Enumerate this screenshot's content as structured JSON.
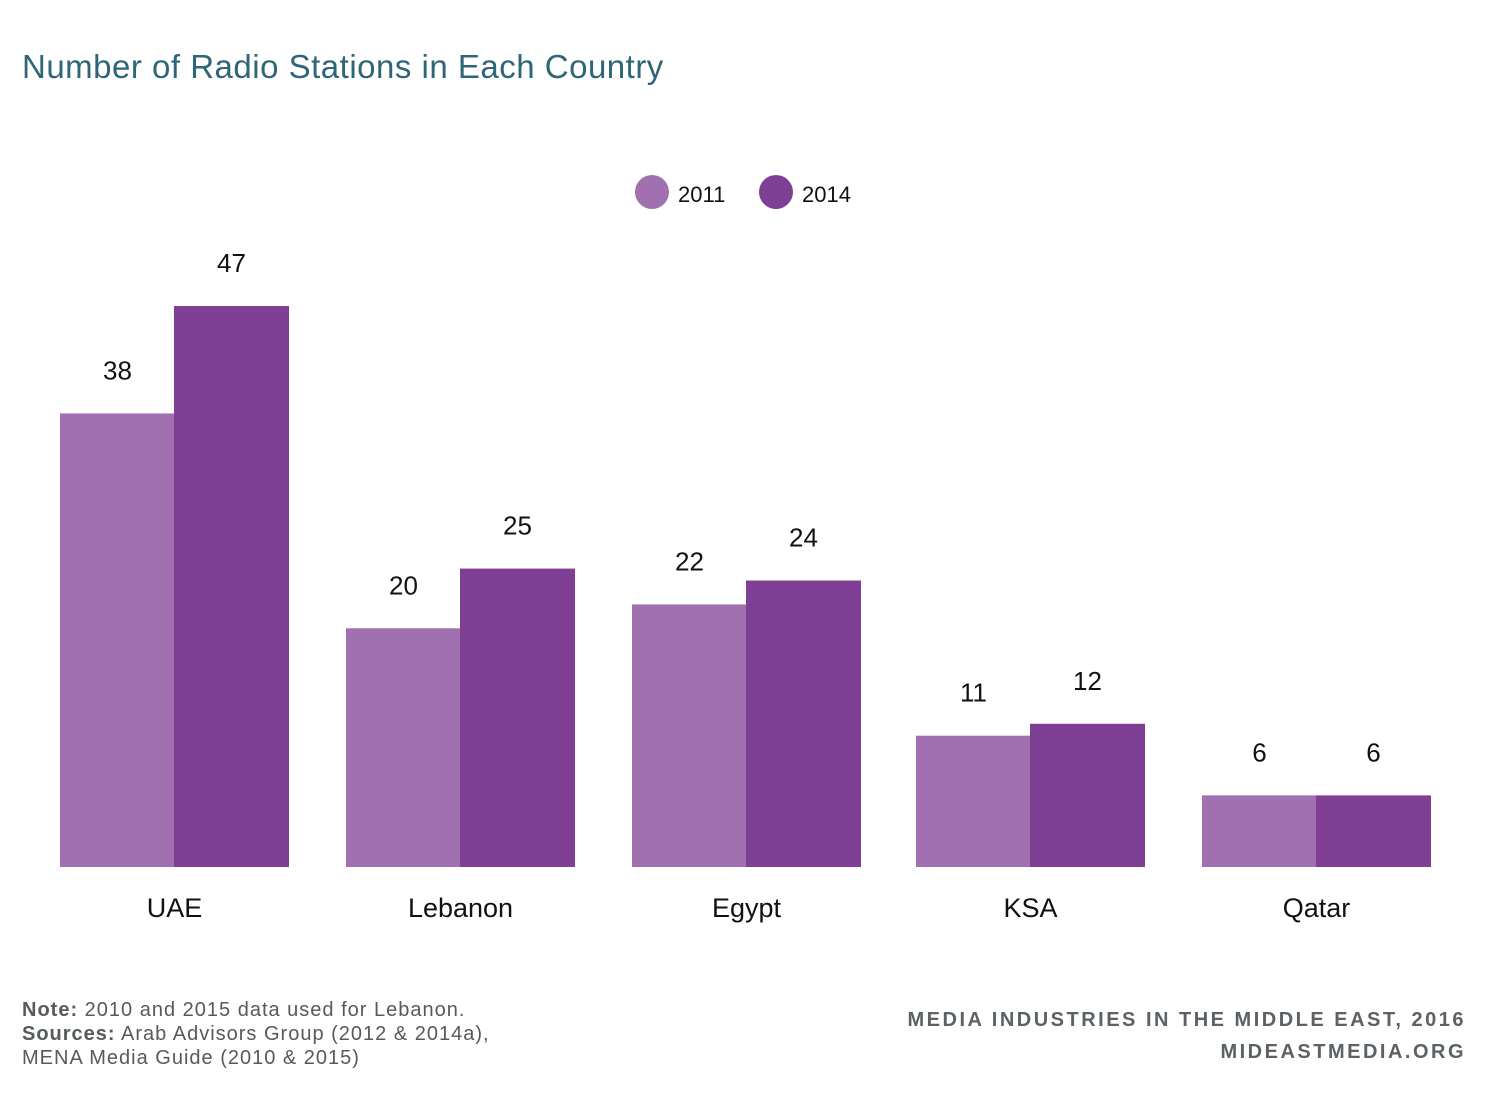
{
  "chart_data": {
    "type": "bar",
    "title": "Number of Radio Stations in Each Country",
    "categories": [
      "UAE",
      "Lebanon",
      "Egypt",
      "KSA",
      "Qatar"
    ],
    "series": [
      {
        "name": "2011",
        "values": [
          38,
          20,
          22,
          11,
          6
        ],
        "color": "#a070b0"
      },
      {
        "name": "2014",
        "values": [
          47,
          25,
          24,
          12,
          6
        ],
        "color": "#7e3f94"
      }
    ],
    "legend": "top-center",
    "grid": false,
    "ylim": [
      0,
      47
    ]
  },
  "notes": {
    "note_label": "Note:",
    "note_text": "2010 and 2015 data used for Lebanon.",
    "sources_label": "Sources:",
    "sources_text": "Arab Advisors Group (2012 & 2014a),",
    "sources_text_2": "MENA Media Guide (2010 & 2015)"
  },
  "credit": {
    "line1": "MEDIA INDUSTRIES IN THE MIDDLE EAST, 2016",
    "line2": "MIDEASTMEDIA.ORG"
  }
}
